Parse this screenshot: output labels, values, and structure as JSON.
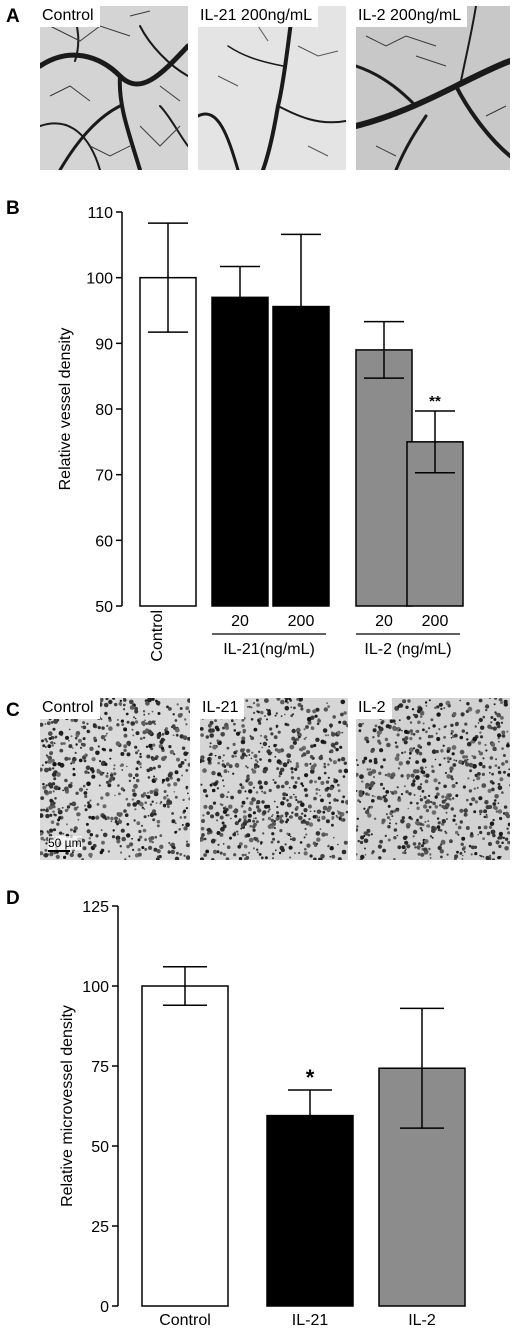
{
  "panels": {
    "A": {
      "letter": "A",
      "images": [
        {
          "label": "Control"
        },
        {
          "label": "IL-21 200ng/mL"
        },
        {
          "label": "IL-2 200ng/mL"
        }
      ]
    },
    "C": {
      "letter": "C",
      "images": [
        {
          "label": "Control"
        },
        {
          "label": "IL-21"
        },
        {
          "label": "IL-2"
        }
      ],
      "scalebar": "50 µm"
    }
  },
  "chart_data": [
    {
      "panel": "B",
      "type": "bar",
      "ylabel": "Relative vessel density",
      "ylim": [
        50,
        110
      ],
      "yticks": [
        50,
        60,
        70,
        80,
        90,
        100,
        110
      ],
      "categories": [
        "Control",
        "20",
        "200",
        "20",
        "200"
      ],
      "groups": [
        {
          "label": "IL-21(ng/mL)",
          "members": [
            1,
            2
          ]
        },
        {
          "label": "IL-2 (ng/mL)",
          "members": [
            3,
            4
          ]
        }
      ],
      "values": [
        100,
        97,
        95.6,
        89,
        75
      ],
      "errors": [
        8.3,
        4.7,
        11,
        4.3,
        4.7
      ],
      "colors": [
        "#ffffff",
        "#000000",
        "#000000",
        "#8c8c8c",
        "#8c8c8c"
      ],
      "annotations": [
        "",
        "",
        "",
        "",
        "**"
      ]
    },
    {
      "panel": "D",
      "type": "bar",
      "ylabel": "Relative microvessel density",
      "ylim": [
        0,
        125
      ],
      "yticks": [
        0,
        25,
        50,
        75,
        100,
        125
      ],
      "categories": [
        "Control",
        "IL-21",
        "IL-2"
      ],
      "values": [
        100,
        59.5,
        74.3
      ],
      "errors": [
        6,
        8,
        18.7
      ],
      "colors": [
        "#ffffff",
        "#000000",
        "#8c8c8c"
      ],
      "annotations": [
        "",
        "*",
        ""
      ]
    }
  ]
}
